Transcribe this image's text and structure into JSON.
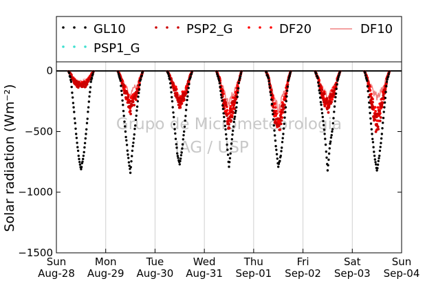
{
  "chart_data": {
    "type": "scatter",
    "ylabel": "Solar radiation (Wm⁻²)",
    "ylim": [
      -1500,
      75
    ],
    "yticks": [
      0,
      -500,
      -1000,
      -1500
    ],
    "ytick_labels": [
      "0",
      "−500",
      "−1000",
      "−1500"
    ],
    "xlim": [
      0,
      7
    ],
    "xticks": [
      {
        "value": 0,
        "day": "Sun",
        "date": "Aug-28"
      },
      {
        "value": 1,
        "day": "Mon",
        "date": "Aug-29"
      },
      {
        "value": 2,
        "day": "Tue",
        "date": "Aug-30"
      },
      {
        "value": 3,
        "day": "Wed",
        "date": "Aug-31"
      },
      {
        "value": 4,
        "day": "Thu",
        "date": "Sep-01"
      },
      {
        "value": 5,
        "day": "Fri",
        "date": "Sep-02"
      },
      {
        "value": 6,
        "day": "Sat",
        "date": "Sep-03"
      },
      {
        "value": 7,
        "day": "Sun",
        "date": "Sep-04"
      }
    ],
    "grid": "vertical",
    "legend_placement": "top",
    "watermark": [
      "Grupo de Micrometeorologia",
      "IAG / USP"
    ],
    "series": [
      {
        "name": "GL10",
        "style": "dots",
        "color": "#000000",
        "daily_min": [
          -810,
          -840,
          -770,
          -790,
          -790,
          -820,
          -820
        ],
        "x": [
          0.25,
          0.3,
          0.35,
          0.4,
          0.45,
          0.5,
          0.55,
          0.6,
          0.65,
          0.7,
          0.75,
          1.25,
          1.3,
          1.35,
          1.4,
          1.45,
          1.5,
          1.55,
          1.6,
          1.65,
          1.7,
          1.75,
          2.25,
          2.3,
          2.35,
          2.4,
          2.45,
          2.5,
          2.55,
          2.6,
          2.65,
          2.7,
          2.75,
          3.25,
          3.3,
          3.35,
          3.4,
          3.45,
          3.5,
          3.55,
          3.6,
          3.65,
          3.7,
          3.75,
          4.25,
          4.3,
          4.35,
          4.4,
          4.45,
          4.5,
          4.55,
          4.6,
          4.65,
          4.7,
          4.75,
          5.25,
          5.3,
          5.35,
          5.4,
          5.45,
          5.5,
          5.55,
          5.6,
          5.65,
          5.7,
          5.75,
          6.25,
          6.3,
          6.35,
          6.4,
          6.45,
          6.5,
          6.55,
          6.6,
          6.65,
          6.7,
          6.75
        ],
        "y": [
          -5,
          -90,
          -300,
          -520,
          -700,
          -810,
          -700,
          -520,
          -300,
          -90,
          -5,
          -5,
          -80,
          -280,
          -500,
          -690,
          -840,
          -620,
          -450,
          -250,
          -80,
          -5,
          -5,
          -70,
          -250,
          -480,
          -680,
          -770,
          -640,
          -460,
          -240,
          -70,
          -5,
          -5,
          -80,
          -220,
          -380,
          -560,
          -790,
          -600,
          -420,
          -300,
          -100,
          -5,
          -5,
          -60,
          -200,
          -400,
          -620,
          -790,
          -700,
          -520,
          -300,
          -80,
          -5,
          -5,
          -60,
          -220,
          -380,
          -560,
          -820,
          -600,
          -480,
          -250,
          -80,
          -5,
          -5,
          -80,
          -300,
          -520,
          -700,
          -820,
          -700,
          -520,
          -300,
          -90,
          -5
        ]
      },
      {
        "name": "PSP2_G",
        "style": "dots",
        "color": "#cc0000",
        "daily_min": [
          -120,
          -330,
          -260,
          -440,
          -450,
          -300,
          -440
        ],
        "x": [
          0.25,
          0.3,
          0.35,
          0.4,
          0.45,
          0.5,
          0.55,
          0.6,
          0.65,
          0.7,
          0.75,
          1.25,
          1.3,
          1.35,
          1.4,
          1.45,
          1.5,
          1.55,
          1.6,
          1.65,
          1.7,
          1.75,
          2.25,
          2.3,
          2.35,
          2.4,
          2.45,
          2.5,
          2.55,
          2.6,
          2.65,
          2.7,
          2.75,
          3.25,
          3.3,
          3.35,
          3.4,
          3.45,
          3.5,
          3.55,
          3.6,
          3.65,
          3.7,
          3.75,
          4.25,
          4.3,
          4.35,
          4.4,
          4.45,
          4.5,
          4.55,
          4.6,
          4.65,
          4.7,
          4.75,
          5.25,
          5.3,
          5.35,
          5.4,
          5.45,
          5.5,
          5.55,
          5.6,
          5.65,
          5.7,
          5.75,
          6.25,
          6.3,
          6.35,
          6.4,
          6.45,
          6.5,
          6.55,
          6.6,
          6.65,
          6.7,
          6.75
        ],
        "y": [
          -5,
          -40,
          -80,
          -105,
          -115,
          -120,
          -115,
          -105,
          -80,
          -40,
          -5,
          -5,
          -50,
          -120,
          -180,
          -260,
          -330,
          -250,
          -230,
          -160,
          -70,
          -5,
          -5,
          -40,
          -100,
          -160,
          -200,
          -260,
          -230,
          -200,
          -140,
          -60,
          -5,
          -5,
          -60,
          -160,
          -260,
          -360,
          -440,
          -340,
          -280,
          -200,
          -90,
          -5,
          -5,
          -60,
          -180,
          -300,
          -400,
          -450,
          -380,
          -300,
          -200,
          -80,
          -5,
          -5,
          -60,
          -140,
          -200,
          -260,
          -300,
          -250,
          -200,
          -150,
          -70,
          -5,
          -5,
          -60,
          -160,
          -280,
          -380,
          -440,
          -360,
          -280,
          -180,
          -70,
          -5
        ]
      },
      {
        "name": "DF20",
        "style": "dots",
        "color": "#ff0000",
        "daily_min": [
          -110,
          -300,
          -250,
          -400,
          -430,
          -280,
          -410
        ],
        "x": [
          0.25,
          0.3,
          0.35,
          0.4,
          0.45,
          0.5,
          0.55,
          0.6,
          0.65,
          0.7,
          0.75,
          1.25,
          1.3,
          1.35,
          1.4,
          1.45,
          1.5,
          1.55,
          1.6,
          1.65,
          1.7,
          1.75,
          2.25,
          2.3,
          2.35,
          2.4,
          2.45,
          2.5,
          2.55,
          2.6,
          2.65,
          2.7,
          2.75,
          3.25,
          3.3,
          3.35,
          3.4,
          3.45,
          3.5,
          3.55,
          3.6,
          3.65,
          3.7,
          3.75,
          4.25,
          4.3,
          4.35,
          4.4,
          4.45,
          4.5,
          4.55,
          4.6,
          4.65,
          4.7,
          4.75,
          5.25,
          5.3,
          5.35,
          5.4,
          5.45,
          5.5,
          5.55,
          5.6,
          5.65,
          5.7,
          5.75,
          6.25,
          6.3,
          6.35,
          6.4,
          6.45,
          6.5,
          6.55,
          6.6,
          6.65,
          6.7,
          6.75
        ],
        "y": [
          -5,
          -35,
          -75,
          -100,
          -108,
          -110,
          -108,
          -100,
          -75,
          -35,
          -5,
          -5,
          -45,
          -110,
          -170,
          -240,
          -300,
          -235,
          -215,
          -150,
          -65,
          -5,
          -5,
          -38,
          -95,
          -150,
          -190,
          -250,
          -220,
          -190,
          -130,
          -55,
          -5,
          -5,
          -55,
          -150,
          -240,
          -330,
          -400,
          -320,
          -260,
          -190,
          -85,
          -5,
          -5,
          -55,
          -170,
          -280,
          -370,
          -430,
          -360,
          -280,
          -190,
          -75,
          -5,
          -5,
          -55,
          -130,
          -190,
          -240,
          -280,
          -235,
          -190,
          -140,
          -65,
          -5,
          -5,
          -55,
          -150,
          -260,
          -350,
          -410,
          -340,
          -260,
          -170,
          -65,
          -5
        ]
      },
      {
        "name": "DF10",
        "style": "line",
        "color": "#f08080",
        "daily_min": [
          -90,
          -200,
          -230,
          -260,
          -310,
          -220,
          -210
        ],
        "x": [
          0.25,
          0.3,
          0.35,
          0.4,
          0.45,
          0.5,
          0.55,
          0.6,
          0.65,
          0.7,
          0.75,
          1.25,
          1.3,
          1.35,
          1.4,
          1.45,
          1.5,
          1.55,
          1.6,
          1.65,
          1.7,
          1.75,
          2.25,
          2.3,
          2.35,
          2.4,
          2.45,
          2.5,
          2.55,
          2.6,
          2.65,
          2.7,
          2.75,
          3.25,
          3.3,
          3.35,
          3.4,
          3.45,
          3.5,
          3.55,
          3.6,
          3.65,
          3.7,
          3.75,
          4.25,
          4.3,
          4.35,
          4.4,
          4.45,
          4.5,
          4.55,
          4.6,
          4.65,
          4.7,
          4.75,
          5.25,
          5.3,
          5.35,
          5.4,
          5.45,
          5.5,
          5.55,
          5.6,
          5.65,
          5.7,
          5.75,
          6.25,
          6.3,
          6.35,
          6.4,
          6.45,
          6.5,
          6.55,
          6.6,
          6.65,
          6.7,
          6.75
        ],
        "y": [
          -5,
          -30,
          -60,
          -80,
          -88,
          -90,
          -88,
          -80,
          -60,
          -30,
          -5,
          -5,
          -40,
          -90,
          -130,
          -170,
          -200,
          -150,
          -130,
          -110,
          -50,
          -5,
          -5,
          -35,
          -90,
          -140,
          -180,
          -230,
          -200,
          -170,
          -120,
          -50,
          -5,
          -5,
          -45,
          -110,
          -170,
          -220,
          -260,
          -220,
          -180,
          -130,
          -60,
          -5,
          -5,
          -45,
          -130,
          -200,
          -260,
          -310,
          -260,
          -200,
          -140,
          -60,
          -5,
          -5,
          -40,
          -100,
          -150,
          -190,
          -220,
          -180,
          -150,
          -110,
          -50,
          -5,
          -5,
          -40,
          -100,
          -150,
          -190,
          -210,
          -180,
          -150,
          -110,
          -50,
          -5
        ]
      },
      {
        "name": "PSP1_G",
        "style": "dots",
        "color": "#40e0d0",
        "x": [],
        "y": []
      }
    ]
  }
}
